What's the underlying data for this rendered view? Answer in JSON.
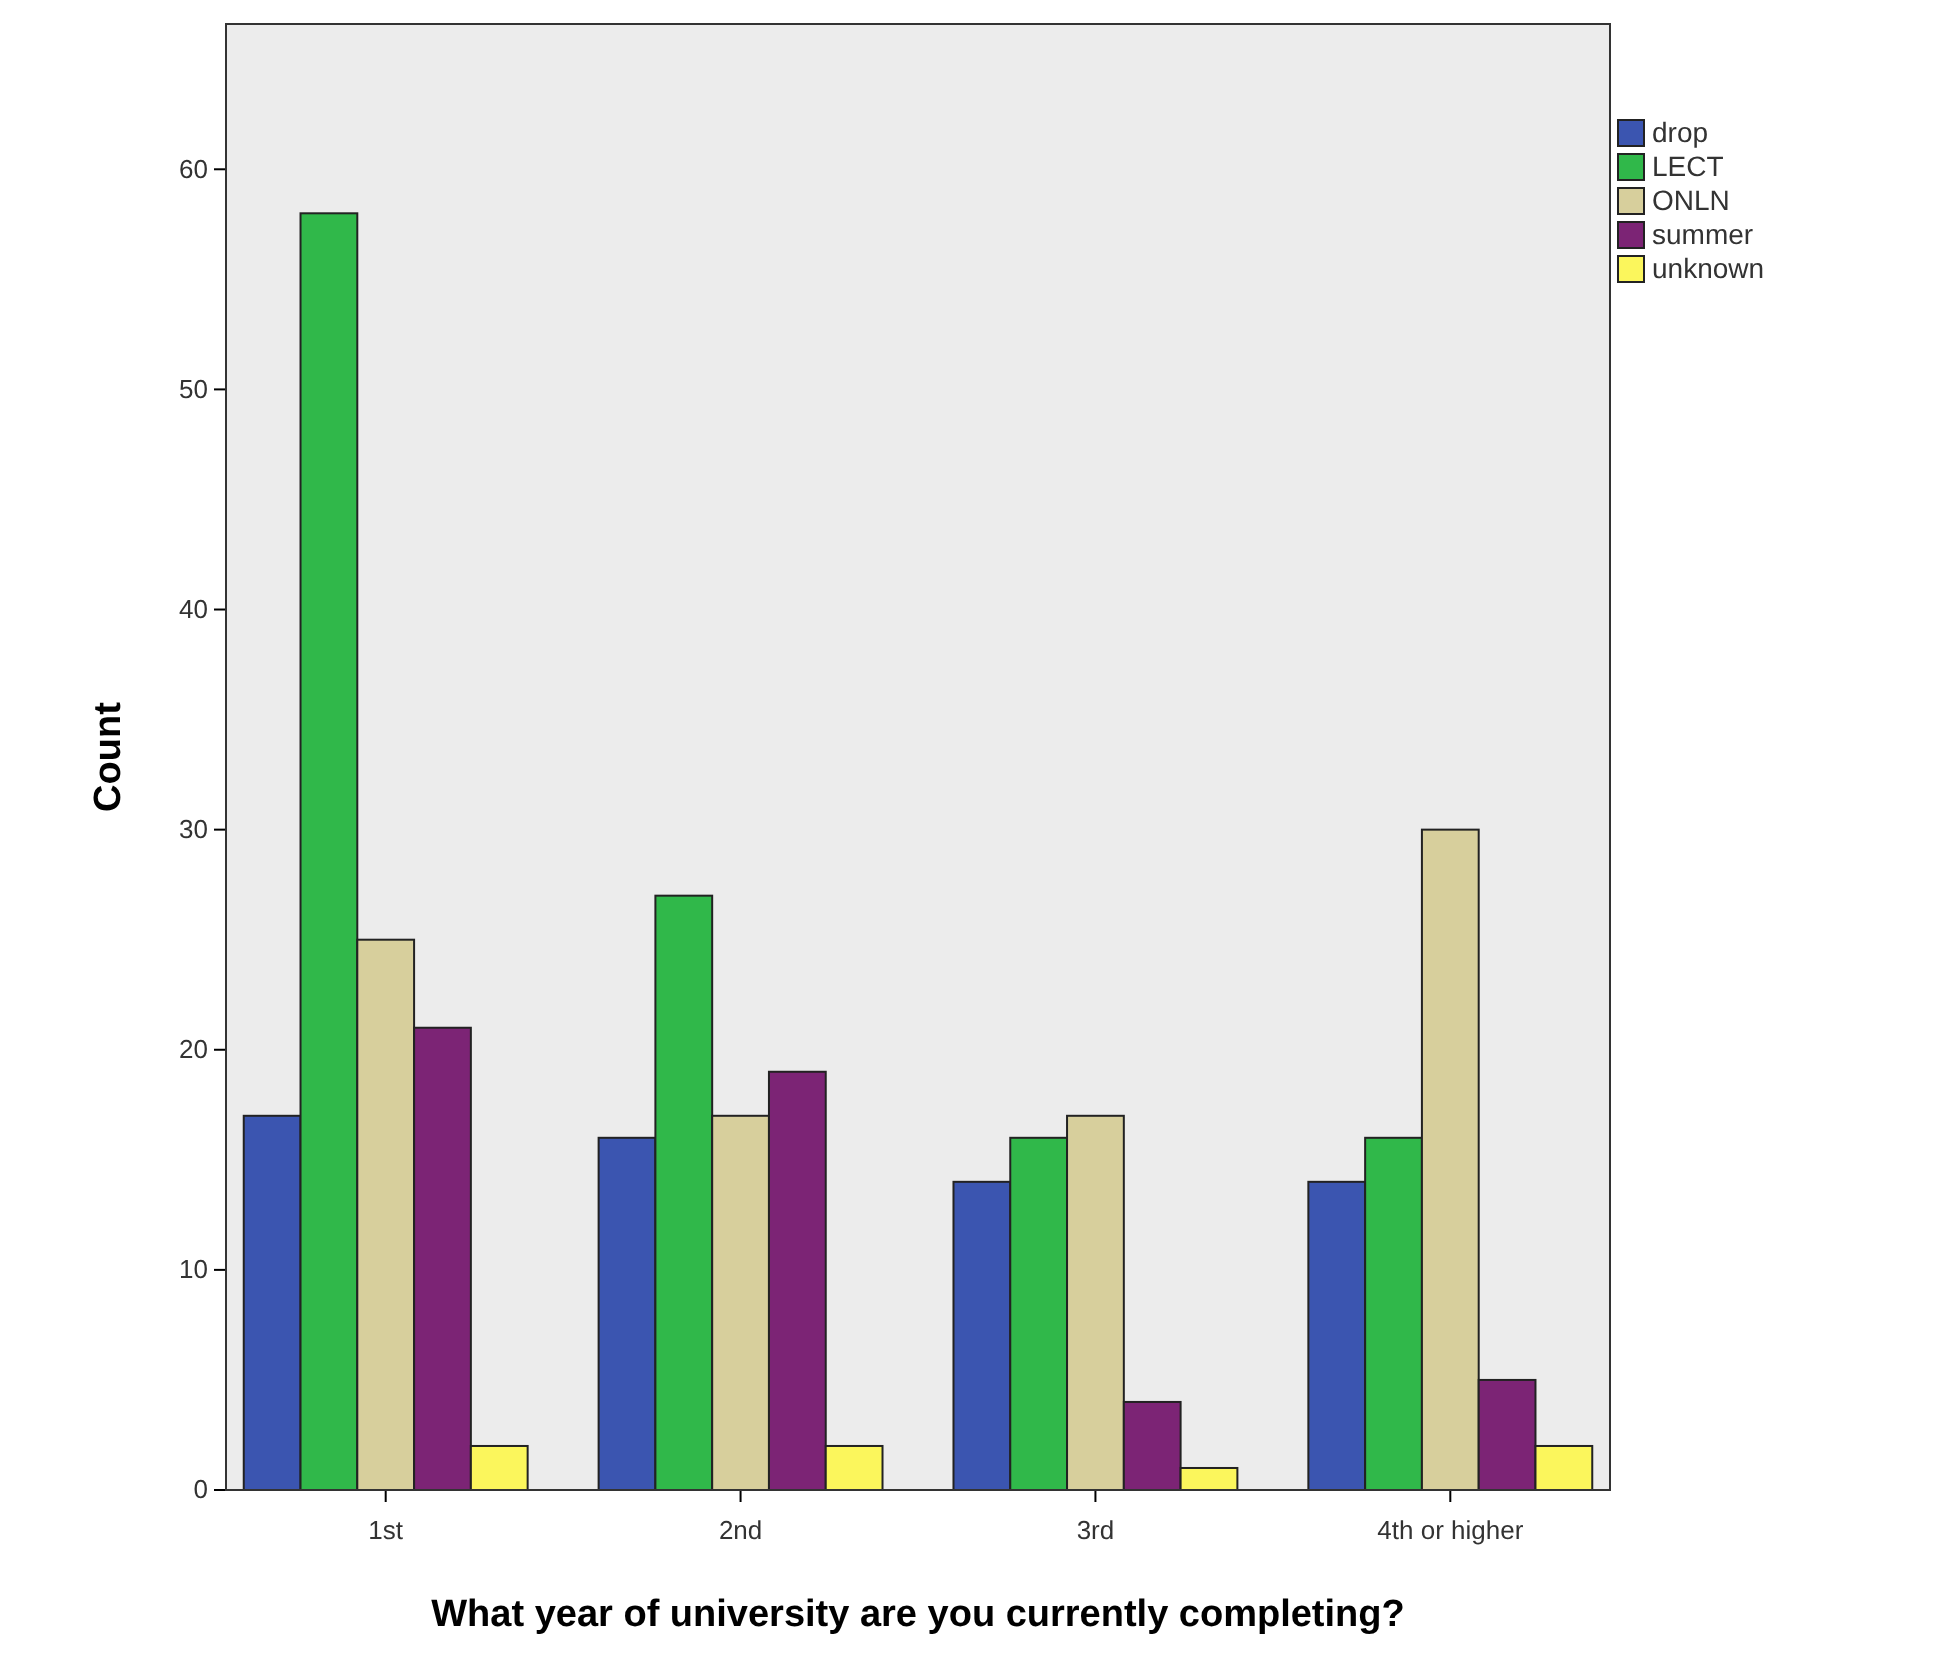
{
  "chart_data": {
    "type": "bar",
    "xlabel": "What year of university are you currently completing?",
    "ylabel": "Count",
    "categories": [
      "1st",
      "2nd",
      "3rd",
      "4th or higher"
    ],
    "series": [
      {
        "name": "drop",
        "color": "#3b55b0",
        "values": [
          17,
          16,
          14,
          14
        ]
      },
      {
        "name": "LECT",
        "color": "#30b84a",
        "values": [
          58,
          27,
          16,
          16
        ]
      },
      {
        "name": "ONLN",
        "color": "#d7cf9c",
        "values": [
          25,
          17,
          17,
          30
        ]
      },
      {
        "name": "summer",
        "color": "#7c2475",
        "values": [
          21,
          19,
          4,
          5
        ]
      },
      {
        "name": "unknown",
        "color": "#fbf65c",
        "values": [
          2,
          2,
          1,
          2
        ]
      }
    ],
    "ylim": [
      0,
      66.6
    ],
    "yticks": [
      0,
      10,
      20,
      30,
      40,
      50,
      60
    ],
    "grid": false,
    "legend": "top right"
  }
}
